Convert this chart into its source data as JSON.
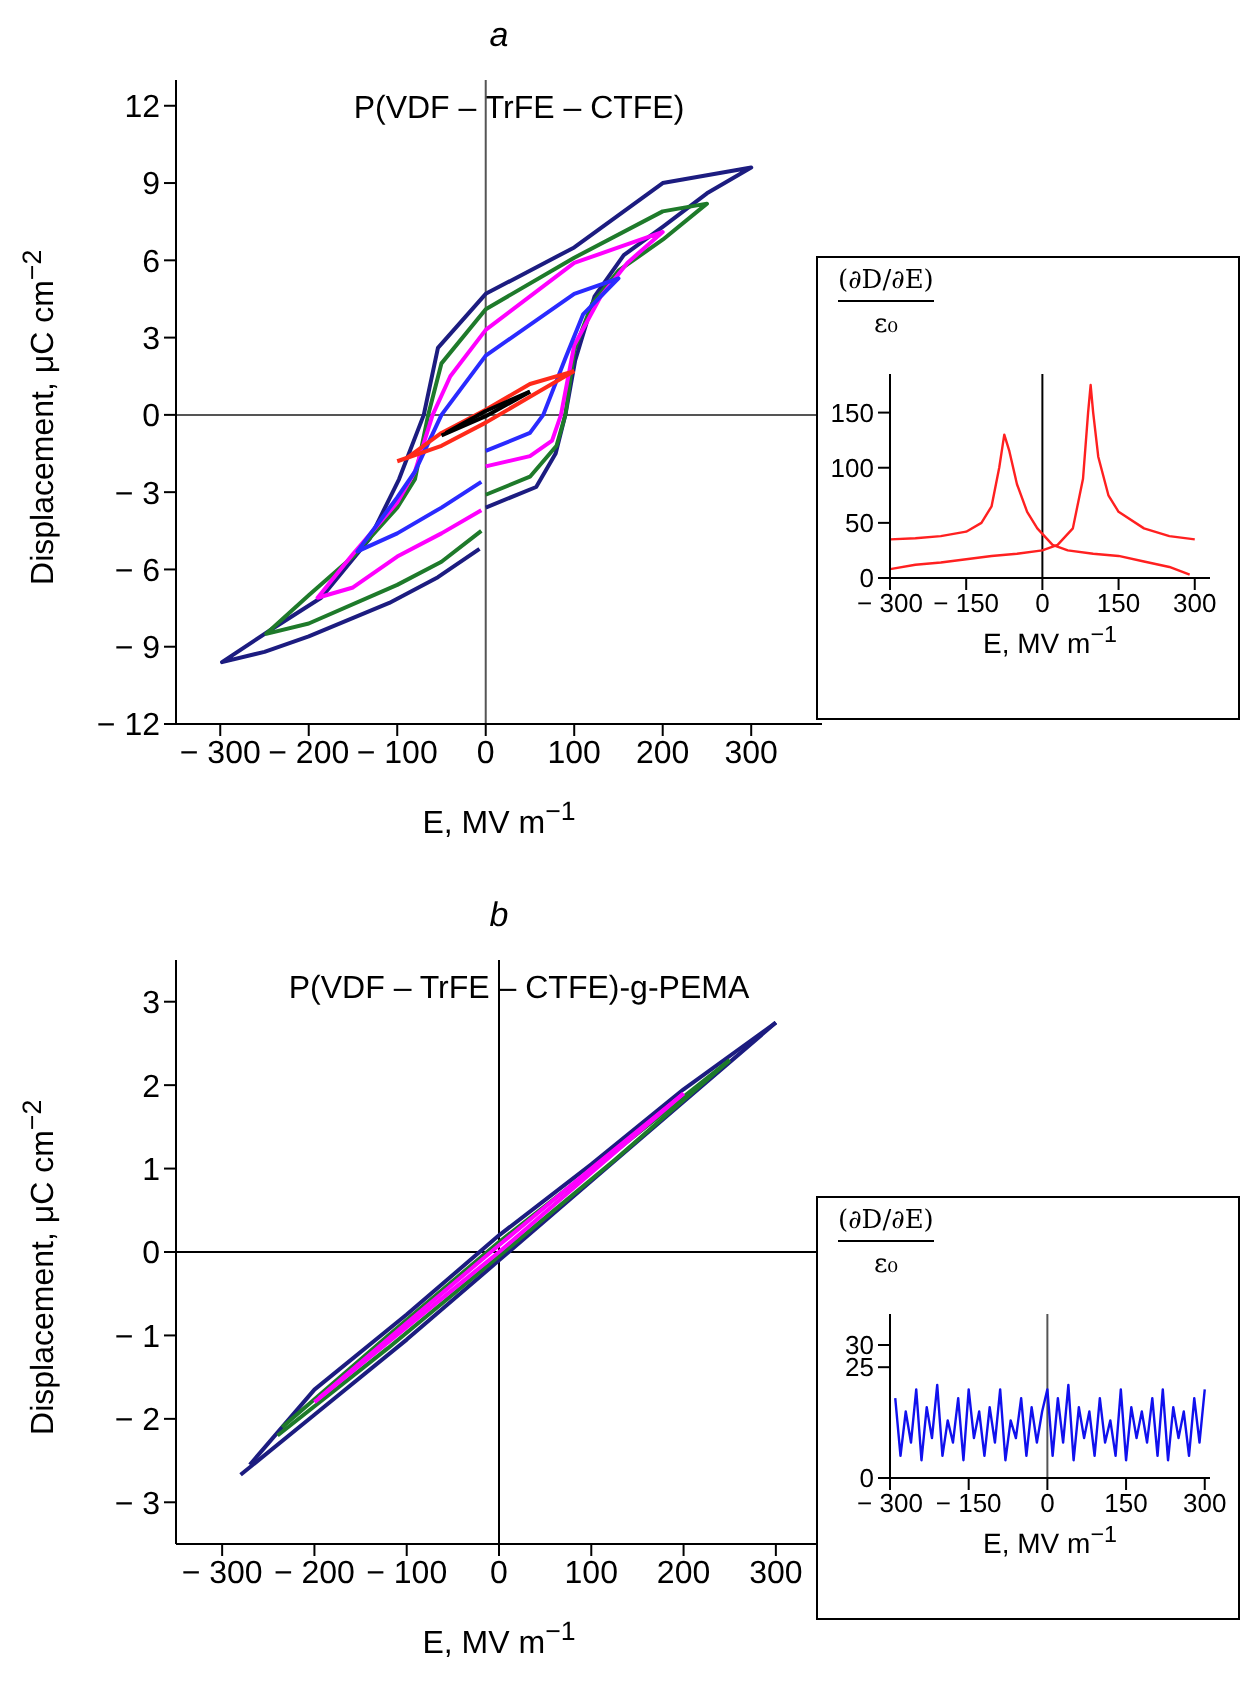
{
  "chart_data": [
    {
      "type": "line",
      "title": "a",
      "subtitle": "P(VDF – TrFE – CTFE)",
      "xlabel": "E, MV m$^{−1}$",
      "ylabel": "Displacement, μC cm$^{−2}$",
      "xlim": [
        -350,
        380
      ],
      "ylim": [
        -12,
        13
      ],
      "xticks": [
        -300,
        -200,
        -100,
        0,
        100,
        200,
        300
      ],
      "yticks": [
        -12,
        -9,
        -6,
        -3,
        0,
        3,
        6,
        9,
        12
      ],
      "ref_lines": [
        {
          "axis": "x",
          "value": 0,
          "color": "#555555"
        },
        {
          "axis": "y",
          "value": 0,
          "color": "#555555"
        }
      ],
      "series": [
        {
          "color": "#1c1c80",
          "x": [
            0,
            57,
            79,
            90,
            101,
            123,
            156,
            200,
            250,
            300,
            250,
            200,
            100,
            0,
            -54,
            -70,
            -98,
            -131,
            -186,
            -241,
            -298,
            -250,
            -200,
            -109,
            -54,
            -7
          ],
          "values": [
            -3.6,
            -2.8,
            -1.5,
            0,
            2.1,
            4.6,
            6.2,
            7.3,
            8.6,
            9.6,
            9.3,
            9.0,
            6.5,
            4.7,
            2.6,
            0,
            -2.5,
            -4.8,
            -7.1,
            -8.3,
            -9.6,
            -9.2,
            -8.6,
            -7.3,
            -6.3,
            -5.2
          ]
        },
        {
          "color": "#1e7a2a",
          "x": [
            0,
            50,
            80,
            90,
            100,
            120,
            150,
            200,
            250,
            200,
            100,
            0,
            -50,
            -65,
            -80,
            -100,
            -150,
            -200,
            -248,
            -200,
            -100,
            -50,
            -5
          ],
          "values": [
            -3.1,
            -2.4,
            -1.2,
            0,
            2.5,
            4.3,
            5.6,
            6.8,
            8.2,
            7.9,
            6.1,
            4.1,
            2,
            0,
            -2.5,
            -3.6,
            -5.5,
            -7,
            -8.5,
            -8.1,
            -6.6,
            -5.7,
            -4.5
          ]
        },
        {
          "color": "#ff00ff",
          "x": [
            0,
            50,
            75,
            85,
            100,
            130,
            160,
            200,
            150,
            100,
            0,
            -40,
            -60,
            -80,
            -100,
            -150,
            -190,
            -150,
            -100,
            -50,
            -5
          ],
          "values": [
            -2,
            -1.6,
            -1,
            0,
            2.7,
            4.6,
            5.9,
            7.1,
            6.5,
            5.9,
            3.3,
            1.5,
            0,
            -2.2,
            -3.4,
            -5.4,
            -7.1,
            -6.7,
            -5.5,
            -4.6,
            -3.7
          ]
        },
        {
          "color": "#2a2aff",
          "x": [
            0,
            50,
            65,
            90,
            110,
            150,
            100,
            0,
            -50,
            -80,
            -100,
            -145,
            -100,
            -50,
            -5
          ],
          "values": [
            -1.4,
            -0.7,
            0,
            2.2,
            3.9,
            5.3,
            4.7,
            2.3,
            0,
            -2.2,
            -3.2,
            -5.3,
            -4.6,
            -3.6,
            -2.6
          ]
        },
        {
          "color": "#ff2a1a",
          "x": [
            -100,
            -50,
            0,
            50,
            100
          ],
          "values": [
            -1.8,
            -1.2,
            -0.3,
            0.7,
            1.7
          ]
        },
        {
          "color": "#ff2a1a",
          "x": [
            100,
            50,
            0,
            -50,
            -90
          ],
          "values": [
            1.7,
            1.2,
            0.2,
            -0.7,
            -1.7
          ]
        },
        {
          "color": "#000000",
          "x": [
            -50,
            0,
            50
          ],
          "values": [
            -0.8,
            -0.05,
            0.9
          ]
        },
        {
          "color": "#000000",
          "x": [
            50,
            0,
            -45
          ],
          "values": [
            0.9,
            0.15,
            -0.7
          ]
        }
      ]
    },
    {
      "type": "line",
      "xlabel": "E, MV m$^{−1}$",
      "ylabel": "(∂D/∂E)",
      "annotations": [
        "ε₀"
      ],
      "xlim": [
        -300,
        330
      ],
      "ylim": [
        0,
        185
      ],
      "xticks": [
        -300,
        -150,
        0,
        150,
        300
      ],
      "yticks": [
        0,
        50,
        100,
        150
      ],
      "ref_lines": [
        {
          "axis": "x",
          "value": 0,
          "color": "#000000"
        }
      ],
      "series": [
        {
          "color": "#ff2020",
          "x": [
            -300,
            -250,
            -200,
            -150,
            -100,
            -50,
            0,
            30,
            60,
            80,
            90,
            95,
            100,
            110,
            130,
            150,
            200,
            250,
            300
          ],
          "values": [
            8,
            12,
            14,
            17,
            20,
            22,
            25,
            30,
            45,
            90,
            150,
            175,
            150,
            110,
            75,
            60,
            45,
            38,
            35
          ]
        },
        {
          "color": "#ff2020",
          "x": [
            -300,
            -250,
            -200,
            -150,
            -120,
            -100,
            -85,
            -75,
            -65,
            -50,
            -30,
            -10,
            20,
            50,
            100,
            150,
            200,
            250,
            290
          ],
          "values": [
            35,
            36,
            38,
            42,
            50,
            65,
            100,
            130,
            115,
            85,
            60,
            45,
            30,
            25,
            22,
            20,
            15,
            10,
            3
          ]
        }
      ]
    },
    {
      "type": "line",
      "title": "b",
      "subtitle": "P(VDF – TrFE – CTFE)-g-PEMA",
      "xlabel": "E, MV m$^{−1}$",
      "ylabel": "Displacement, μC cm$^{−2}$",
      "xlim": [
        -350,
        350
      ],
      "ylim": [
        -3.5,
        3.5
      ],
      "xticks": [
        -300,
        -200,
        -100,
        0,
        100,
        200,
        300
      ],
      "yticks": [
        -3,
        -2,
        -1,
        0,
        1,
        2,
        3
      ],
      "ref_lines": [
        {
          "axis": "x",
          "value": 0,
          "color": "#000000"
        },
        {
          "axis": "y",
          "value": 0,
          "color": "#000000"
        }
      ],
      "series": [
        {
          "color": "#1c1c80",
          "x": [
            -280,
            -200,
            -100,
            0,
            100,
            200,
            300
          ],
          "values": [
            -2.67,
            -1.95,
            -1.05,
            -0.1,
            0.85,
            1.8,
            2.75
          ]
        },
        {
          "color": "#1c1c80",
          "x": [
            300,
            200,
            100,
            0,
            -100,
            -200,
            -270
          ],
          "values": [
            2.75,
            1.95,
            1.05,
            0.2,
            -0.75,
            -1.65,
            -2.55
          ]
        },
        {
          "color": "#1e7a2a",
          "x": [
            -240,
            -120,
            0,
            125,
            250
          ],
          "values": [
            -2.2,
            -1.15,
            -0.05,
            1.1,
            2.3
          ]
        },
        {
          "color": "#1e7a2a",
          "x": [
            250,
            125,
            0,
            -120,
            -235
          ],
          "values": [
            2.3,
            1.2,
            0.12,
            -1.0,
            -2.1
          ]
        },
        {
          "color": "#ff00ff",
          "x": [
            -200,
            -100,
            0,
            100,
            200
          ],
          "values": [
            -1.8,
            -0.9,
            0,
            0.95,
            1.9
          ]
        },
        {
          "color": "#ff00ff",
          "x": [
            200,
            100,
            0,
            -100,
            -195
          ],
          "values": [
            1.9,
            1.0,
            0.08,
            -0.85,
            -1.75
          ]
        }
      ]
    },
    {
      "type": "line",
      "xlabel": "E, MV m$^{−1}$",
      "ylabel": "(∂D/∂E)",
      "annotations": [
        "ε₀"
      ],
      "xlim": [
        -300,
        310
      ],
      "ylim": [
        0,
        37
      ],
      "xticks": [
        -300,
        -150,
        0,
        150,
        300
      ],
      "yticks": [
        0,
        25,
        30
      ],
      "ref_lines": [
        {
          "axis": "x",
          "value": 0,
          "color": "#555555"
        }
      ],
      "series": [
        {
          "color": "#1010ee",
          "x": [
            -290,
            -280,
            -270,
            -260,
            -250,
            -240,
            -230,
            -220,
            -210,
            -200,
            -190,
            -180,
            -170,
            -160,
            -150,
            -140,
            -130,
            -120,
            -110,
            -100,
            -90,
            -80,
            -70,
            -60,
            -50,
            -40,
            -30,
            -20,
            -10,
            0,
            10,
            20,
            30,
            40,
            50,
            60,
            70,
            80,
            90,
            100,
            110,
            120,
            130,
            140,
            150,
            160,
            170,
            180,
            190,
            200,
            210,
            220,
            230,
            240,
            250,
            260,
            270,
            280,
            290,
            300
          ],
          "values": [
            18,
            5,
            15,
            8,
            20,
            4,
            16,
            9,
            21,
            5,
            13,
            8,
            18,
            4,
            20,
            9,
            15,
            5,
            16,
            8,
            20,
            4,
            13,
            9,
            18,
            5,
            16,
            8,
            15,
            20,
            5,
            18,
            8,
            21,
            4,
            16,
            9,
            15,
            5,
            18,
            8,
            13,
            5,
            20,
            4,
            16,
            9,
            15,
            8,
            18,
            5,
            20,
            4,
            16,
            9,
            15,
            5,
            18,
            8,
            20
          ]
        }
      ]
    }
  ]
}
